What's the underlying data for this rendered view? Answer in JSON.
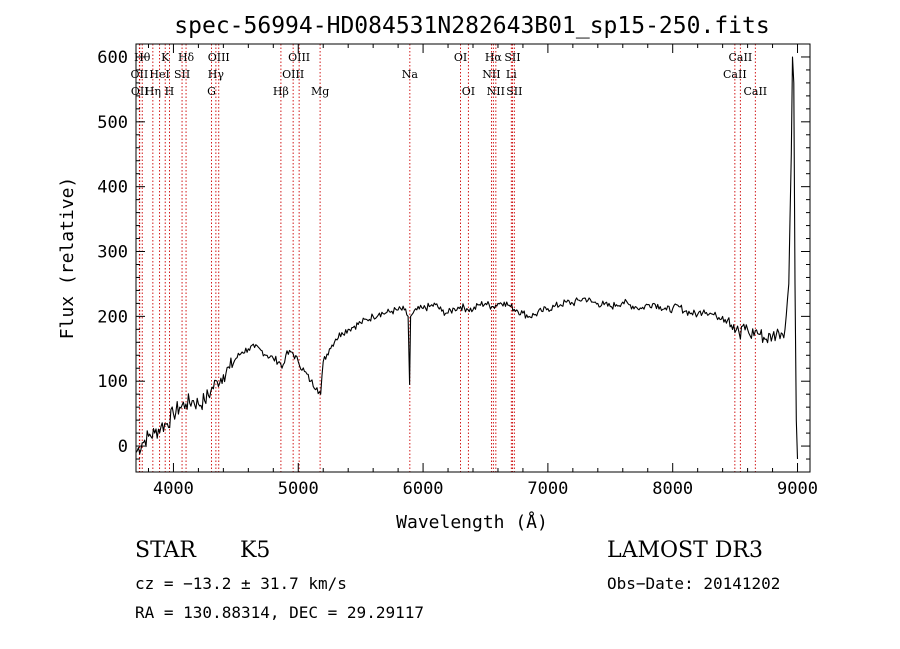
{
  "chart_data": {
    "type": "line",
    "title": "spec-56994-HD084531N282643B01_sp15-250.fits",
    "xlabel": "Wavelength (Å)",
    "ylabel": "Flux (relative)",
    "xlim": [
      3700,
      9100
    ],
    "ylim": [
      -40,
      620
    ],
    "xticks": [
      4000,
      5000,
      6000,
      7000,
      8000,
      9000
    ],
    "yticks": [
      0,
      100,
      200,
      300,
      400,
      500,
      600
    ],
    "grid": false,
    "series": [
      {
        "name": "flux",
        "x": [
          3700,
          3750,
          3800,
          3850,
          3900,
          3950,
          4000,
          4050,
          4100,
          4150,
          4200,
          4250,
          4300,
          4350,
          4400,
          4450,
          4500,
          4550,
          4600,
          4650,
          4700,
          4750,
          4800,
          4850,
          4870,
          4900,
          4950,
          5000,
          5050,
          5100,
          5150,
          5180,
          5200,
          5250,
          5300,
          5350,
          5400,
          5450,
          5500,
          5550,
          5600,
          5650,
          5700,
          5750,
          5800,
          5850,
          5880,
          5892,
          5900,
          5920,
          5950,
          6000,
          6050,
          6100,
          6150,
          6200,
          6250,
          6300,
          6350,
          6400,
          6450,
          6500,
          6550,
          6563,
          6600,
          6650,
          6700,
          6750,
          6800,
          6850,
          6900,
          6950,
          7000,
          7050,
          7100,
          7150,
          7200,
          7250,
          7300,
          7350,
          7400,
          7450,
          7500,
          7550,
          7600,
          7650,
          7700,
          7750,
          7800,
          7850,
          7900,
          7950,
          8000,
          8050,
          8100,
          8150,
          8200,
          8250,
          8300,
          8350,
          8400,
          8450,
          8498,
          8520,
          8542,
          8560,
          8600,
          8620,
          8662,
          8700,
          8750,
          8800,
          8850,
          8900,
          8930,
          8950,
          8960,
          8970,
          8980,
          8990,
          9000
        ],
        "values": [
          -10,
          5,
          15,
          20,
          30,
          35,
          50,
          60,
          65,
          70,
          65,
          70,
          85,
          100,
          110,
          120,
          135,
          145,
          150,
          152,
          148,
          140,
          135,
          130,
          120,
          140,
          145,
          130,
          115,
          100,
          90,
          80,
          130,
          150,
          165,
          175,
          180,
          185,
          190,
          195,
          200,
          205,
          205,
          208,
          210,
          210,
          200,
          95,
          200,
          205,
          210,
          212,
          215,
          218,
          208,
          205,
          212,
          215,
          212,
          210,
          218,
          220,
          215,
          215,
          220,
          222,
          215,
          210,
          205,
          200,
          203,
          208,
          212,
          215,
          218,
          222,
          220,
          225,
          228,
          222,
          220,
          218,
          215,
          218,
          222,
          218,
          215,
          212,
          218,
          220,
          215,
          210,
          212,
          215,
          208,
          205,
          203,
          210,
          205,
          200,
          200,
          198,
          175,
          185,
          165,
          185,
          180,
          170,
          178,
          172,
          165,
          170,
          175,
          180,
          250,
          450,
          600,
          560,
          250,
          40,
          -20
        ]
      }
    ],
    "lines": [
      {
        "name": "OII",
        "x": 3727,
        "label_row": 2
      },
      {
        "name": "OII",
        "x": 3730,
        "label_row": 3
      },
      {
        "name": "Hθ",
        "x": 3750,
        "label_row": 1
      },
      {
        "name": "Hη",
        "x": 3835,
        "label_row": 3
      },
      {
        "name": "HeI",
        "x": 3889,
        "label_row": 2
      },
      {
        "name": "K",
        "x": 3934,
        "label_row": 1
      },
      {
        "name": "H",
        "x": 3968,
        "label_row": 3
      },
      {
        "name": "SII",
        "x": 4069,
        "label_row": 2
      },
      {
        "name": "Hδ",
        "x": 4101,
        "label_row": 1
      },
      {
        "name": "G",
        "x": 4305,
        "label_row": 3
      },
      {
        "name": "Hγ",
        "x": 4340,
        "label_row": 2
      },
      {
        "name": "OIII",
        "x": 4363,
        "label_row": 1
      },
      {
        "name": "Hβ",
        "x": 4861,
        "label_row": 3
      },
      {
        "name": "OIII",
        "x": 4959,
        "label_row": 2
      },
      {
        "name": "OIII",
        "x": 5007,
        "label_row": 1
      },
      {
        "name": "Mg",
        "x": 5175,
        "label_row": 3
      },
      {
        "name": "Na",
        "x": 5894,
        "label_row": 2
      },
      {
        "name": "OI",
        "x": 6300,
        "label_row": 1
      },
      {
        "name": "OI",
        "x": 6363,
        "label_row": 3
      },
      {
        "name": "NII",
        "x": 6548,
        "label_row": 2
      },
      {
        "name": "Hα",
        "x": 6563,
        "label_row": 1
      },
      {
        "name": "NII",
        "x": 6583,
        "label_row": 3
      },
      {
        "name": "Li",
        "x": 6707,
        "label_row": 2
      },
      {
        "name": "SII",
        "x": 6716,
        "label_row": 1
      },
      {
        "name": "SII",
        "x": 6731,
        "label_row": 3
      },
      {
        "name": "CaII",
        "x": 8498,
        "label_row": 2
      },
      {
        "name": "CaII",
        "x": 8542,
        "label_row": 1
      },
      {
        "name": "CaII",
        "x": 8662,
        "label_row": 3
      }
    ]
  },
  "info": {
    "object_class": "STAR",
    "subclass": "K5",
    "survey": "LAMOST DR3",
    "cz": "cz = −13.2 ± 31.7 km/s",
    "obs_date": "Obs−Date: 20141202",
    "coords": "RA = 130.88314, DEC =  29.29117"
  },
  "colors": {
    "line": "#000000",
    "marker": "#cc0000",
    "axis": "#000000"
  }
}
